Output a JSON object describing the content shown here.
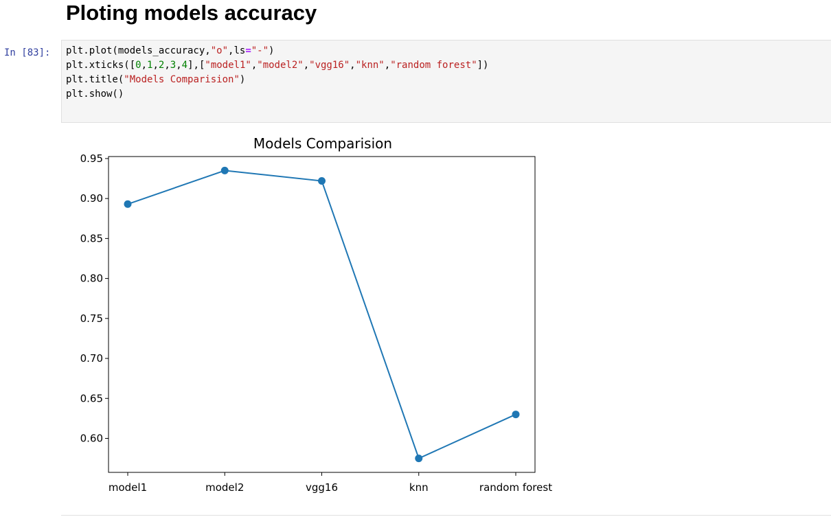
{
  "notebook": {
    "section_heading": "Ploting models accuracy",
    "cell": {
      "prompt": "In [83]:",
      "code_lines": [
        [
          {
            "t": "plt.plot(models_accuracy,",
            "c": ""
          },
          {
            "t": "\"o\"",
            "c": "str"
          },
          {
            "t": ",ls",
            "c": ""
          },
          {
            "t": "=",
            "c": "op"
          },
          {
            "t": "\"-\"",
            "c": "str"
          },
          {
            "t": ")",
            "c": ""
          }
        ],
        [
          {
            "t": "plt.xticks([",
            "c": ""
          },
          {
            "t": "0",
            "c": "num"
          },
          {
            "t": ",",
            "c": ""
          },
          {
            "t": "1",
            "c": "num"
          },
          {
            "t": ",",
            "c": ""
          },
          {
            "t": "2",
            "c": "num"
          },
          {
            "t": ",",
            "c": ""
          },
          {
            "t": "3",
            "c": "num"
          },
          {
            "t": ",",
            "c": ""
          },
          {
            "t": "4",
            "c": "num"
          },
          {
            "t": "],[",
            "c": ""
          },
          {
            "t": "\"model1\"",
            "c": "str"
          },
          {
            "t": ",",
            "c": ""
          },
          {
            "t": "\"model2\"",
            "c": "str"
          },
          {
            "t": ",",
            "c": ""
          },
          {
            "t": "\"vgg16\"",
            "c": "str"
          },
          {
            "t": ",",
            "c": ""
          },
          {
            "t": "\"knn\"",
            "c": "str"
          },
          {
            "t": ",",
            "c": ""
          },
          {
            "t": "\"random forest\"",
            "c": "str"
          },
          {
            "t": "])",
            "c": ""
          }
        ],
        [
          {
            "t": "plt.title(",
            "c": ""
          },
          {
            "t": "\"Models Comparision\"",
            "c": "str"
          },
          {
            "t": ")",
            "c": ""
          }
        ],
        [
          {
            "t": "plt.show()",
            "c": ""
          }
        ]
      ]
    }
  },
  "colors": {
    "line": "#1f77b4",
    "prompt": "#303f9f",
    "string": "#ba2121",
    "number": "#008000",
    "operator": "#aa22ff"
  },
  "chart_data": {
    "type": "line",
    "title": "Models Comparision",
    "xlabel": "",
    "ylabel": "",
    "categories": [
      "model1",
      "model2",
      "vgg16",
      "knn",
      "random forest"
    ],
    "series": [
      {
        "values": [
          0.893,
          0.935,
          0.922,
          0.575,
          0.63
        ],
        "marker": "o",
        "linestyle": "-"
      }
    ],
    "yticks": [
      "0.60",
      "0.65",
      "0.70",
      "0.75",
      "0.80",
      "0.85",
      "0.90",
      "0.95"
    ],
    "ylim": [
      0.5575,
      0.9525
    ],
    "grid": false
  }
}
